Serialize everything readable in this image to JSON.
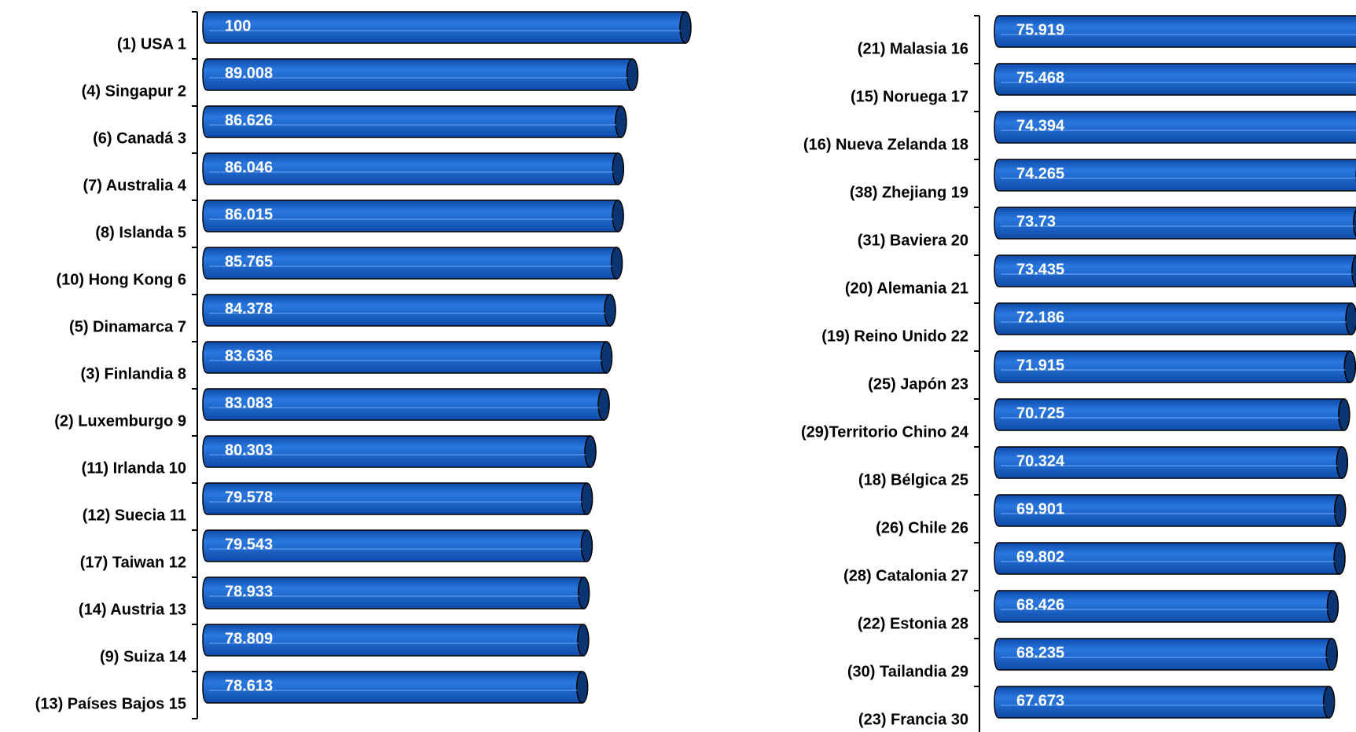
{
  "chart_data": [
    {
      "type": "bar",
      "color": "#1a62c8",
      "categories": [
        "(1) USA 1",
        "(4) Singapur 2",
        "(6) Canadá 3",
        "(7) Australia 4",
        "(8) Islanda 5",
        "(10) Hong Kong 6",
        "(5) Dinamarca 7",
        "(3) Finlandia 8",
        "(2) Luxemburgo 9",
        "(11) Irlanda 10",
        "(12) Suecia 11",
        "(17) Taiwan 12",
        "(14) Austria 13",
        "(9) Suiza 14",
        "(13) Países Bajos 15"
      ],
      "values": [
        100,
        89.008,
        86.626,
        86.046,
        86.015,
        85.765,
        84.378,
        83.636,
        83.083,
        80.303,
        79.578,
        79.543,
        78.933,
        78.809,
        78.613
      ]
    },
    {
      "type": "bar",
      "color": "#1a62c8",
      "categories": [
        "(21) Malasia 16",
        "(15) Noruega 17",
        "(16) Nueva Zelanda 18",
        "(38) Zhejiang 19",
        "(31) Baviera 20",
        "(20) Alemania 21",
        "(19) Reino Unido 22",
        "(25) Japón 23",
        "(29)Territorio Chino 24",
        "(18) Bélgica 25",
        "(26) Chile 26",
        "(28) Catalonia 27",
        "(22) Estonia 28",
        "(30) Tailandia 29",
        "(23) Francia 30"
      ],
      "values": [
        75.919,
        75.468,
        74.394,
        74.265,
        73.73,
        73.435,
        72.186,
        71.915,
        70.725,
        70.324,
        69.901,
        69.802,
        68.426,
        68.235,
        67.673
      ]
    }
  ]
}
